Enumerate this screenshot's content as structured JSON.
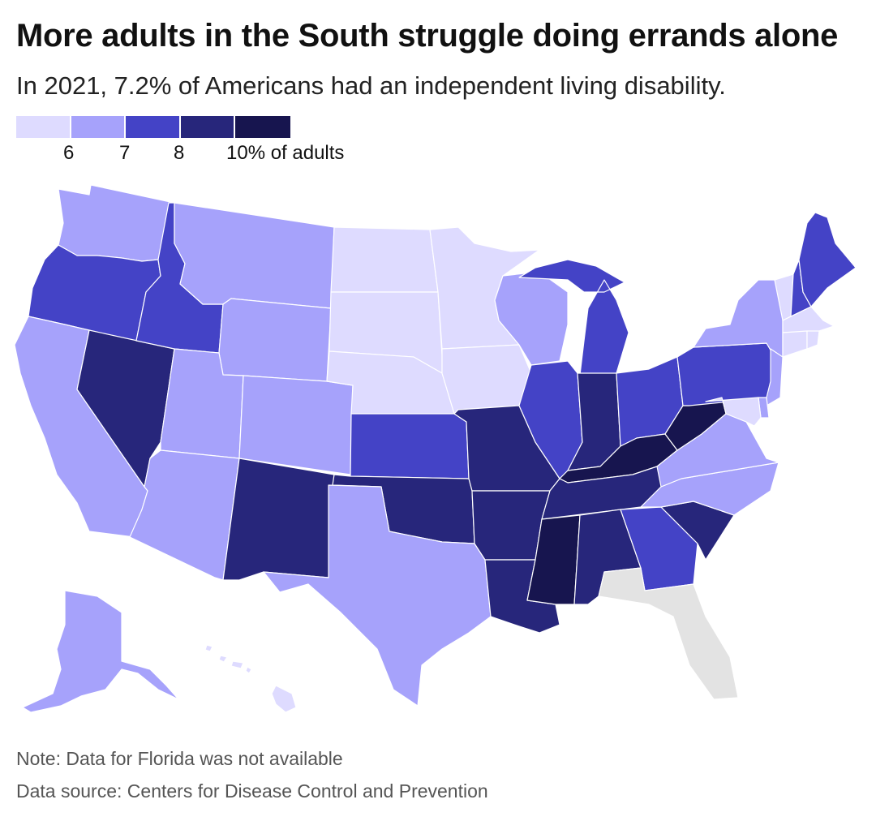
{
  "header": {
    "title": "More adults in the South struggle doing errands alone",
    "subtitle": "In 2021, 7.2% of Americans had an independent living disability."
  },
  "legend": {
    "bins": [
      {
        "color": "#dedbff"
      },
      {
        "color": "#a6a2fb"
      },
      {
        "color": "#4443c6"
      },
      {
        "color": "#27267b"
      },
      {
        "color": "#17154f"
      }
    ],
    "ticks": [
      "6",
      "7",
      "8",
      "10% of adults"
    ]
  },
  "colors": {
    "na": "#e3e3e3",
    "water": "#ffffff"
  },
  "states": [
    {
      "code": "WA",
      "bin": 1
    },
    {
      "code": "OR",
      "bin": 2
    },
    {
      "code": "CA",
      "bin": 1
    },
    {
      "code": "NV",
      "bin": 3
    },
    {
      "code": "ID",
      "bin": 2
    },
    {
      "code": "MT",
      "bin": 1
    },
    {
      "code": "WY",
      "bin": 1
    },
    {
      "code": "UT",
      "bin": 1
    },
    {
      "code": "AZ",
      "bin": 1
    },
    {
      "code": "CO",
      "bin": 1
    },
    {
      "code": "NM",
      "bin": 3
    },
    {
      "code": "ND",
      "bin": 0
    },
    {
      "code": "SD",
      "bin": 0
    },
    {
      "code": "NE",
      "bin": 0
    },
    {
      "code": "KS",
      "bin": 2
    },
    {
      "code": "OK",
      "bin": 3
    },
    {
      "code": "TX",
      "bin": 1
    },
    {
      "code": "MN",
      "bin": 0
    },
    {
      "code": "IA",
      "bin": 0
    },
    {
      "code": "MO",
      "bin": 3
    },
    {
      "code": "AR",
      "bin": 3
    },
    {
      "code": "LA",
      "bin": 3
    },
    {
      "code": "WI",
      "bin": 1
    },
    {
      "code": "IL",
      "bin": 2
    },
    {
      "code": "MI",
      "bin": 2
    },
    {
      "code": "IN",
      "bin": 3
    },
    {
      "code": "OH",
      "bin": 2
    },
    {
      "code": "KY",
      "bin": 4
    },
    {
      "code": "TN",
      "bin": 3
    },
    {
      "code": "MS",
      "bin": 4
    },
    {
      "code": "AL",
      "bin": 3
    },
    {
      "code": "GA",
      "bin": 2
    },
    {
      "code": "FL",
      "bin": null
    },
    {
      "code": "SC",
      "bin": 3
    },
    {
      "code": "NC",
      "bin": 1
    },
    {
      "code": "VA",
      "bin": 1
    },
    {
      "code": "WV",
      "bin": 4
    },
    {
      "code": "PA",
      "bin": 2
    },
    {
      "code": "NY",
      "bin": 1
    },
    {
      "code": "NJ",
      "bin": 1
    },
    {
      "code": "DE",
      "bin": 1
    },
    {
      "code": "MD",
      "bin": 0
    },
    {
      "code": "VT",
      "bin": 0
    },
    {
      "code": "NH",
      "bin": 2
    },
    {
      "code": "ME",
      "bin": 2
    },
    {
      "code": "MA",
      "bin": 0
    },
    {
      "code": "CT",
      "bin": 0
    },
    {
      "code": "RI",
      "bin": 0
    },
    {
      "code": "AK",
      "bin": 1
    },
    {
      "code": "HI",
      "bin": 0
    }
  ],
  "footer": {
    "note": "Note: Data for Florida was not available",
    "source": "Data source: Centers for Disease Control and Prevention"
  }
}
